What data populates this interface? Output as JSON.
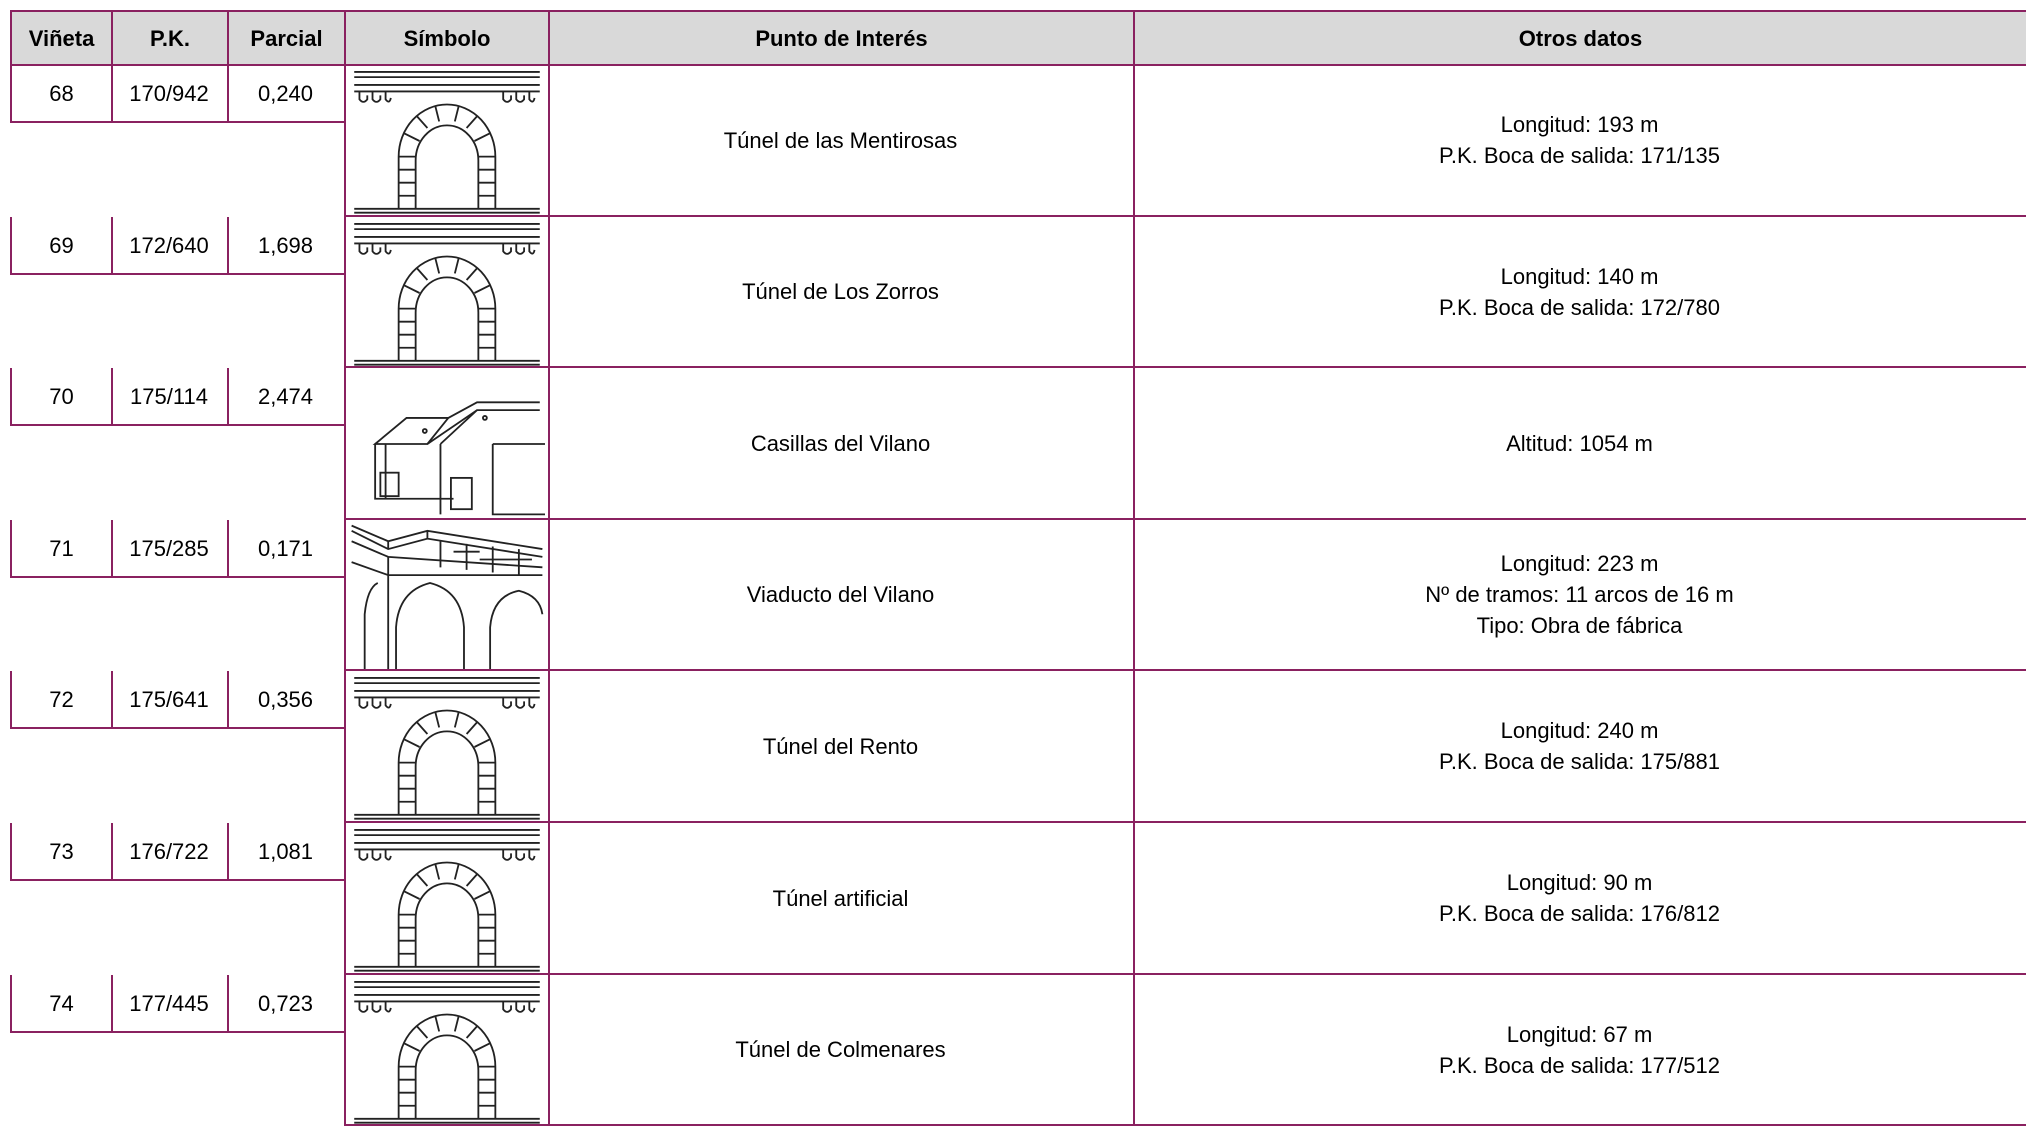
{
  "header": [
    "Viñeta",
    "P.K.",
    "Parcial",
    "Símbolo",
    "Punto de Interés",
    "Otros datos"
  ],
  "rows": [
    {
      "vineta": "68",
      "pk": "170/942",
      "parcial": "0,240",
      "punto": "Túnel de las Mentirosas",
      "otros": [
        "Longitud: 193 m",
        "P.K. Boca de salida: 171/135"
      ]
    },
    {
      "vineta": "69",
      "pk": "172/640",
      "parcial": "1,698",
      "punto": "Túnel de Los Zorros",
      "otros": [
        "Longitud: 140 m",
        "P.K. Boca de salida: 172/780"
      ]
    },
    {
      "vineta": "70",
      "pk": "175/114",
      "parcial": "2,474",
      "punto": "Casillas del Vilano",
      "otros": [
        "Altitud: 1054 m"
      ]
    },
    {
      "vineta": "71",
      "pk": "175/285",
      "parcial": "0,171",
      "punto": "Viaducto del Vilano",
      "otros": [
        "Longitud: 223 m",
        "Nº de tramos: 11 arcos de 16 m",
        "Tipo: Obra de fábrica"
      ]
    },
    {
      "vineta": "72",
      "pk": "175/641",
      "parcial": "0,356",
      "punto": "Túnel del Rento",
      "otros": [
        "Longitud: 240 m",
        "P.K. Boca de salida: 175/881"
      ]
    },
    {
      "vineta": "73",
      "pk": "176/722",
      "parcial": "1,081",
      "punto": "Túnel artificial",
      "otros": [
        "Longitud: 90 m",
        "P.K. Boca de salida: 176/812"
      ]
    },
    {
      "vineta": "74",
      "pk": "177/445",
      "parcial": "0,723",
      "punto": "Túnel de Colmenares",
      "otros": [
        "Longitud: 67 m",
        "P.K. Boca de salida: 177/512"
      ]
    }
  ]
}
